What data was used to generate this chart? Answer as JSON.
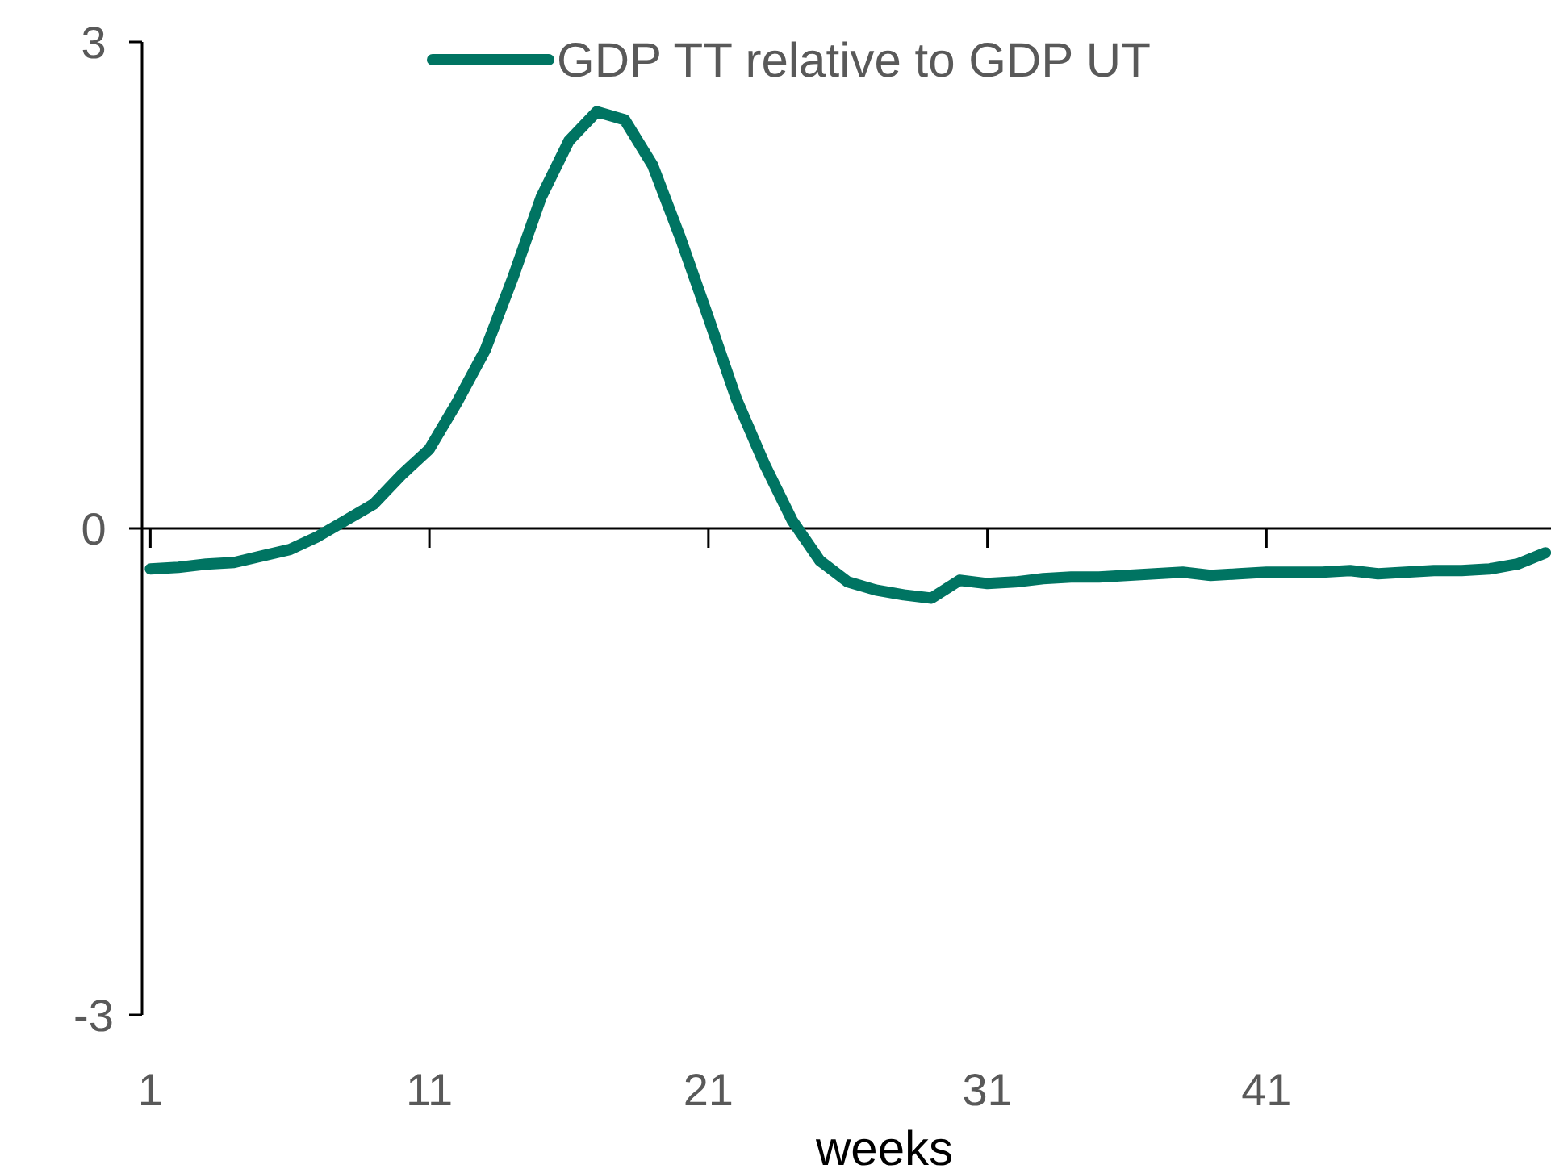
{
  "chart_data": {
    "type": "line",
    "xlabel": "weeks",
    "x": [
      1,
      2,
      3,
      4,
      5,
      6,
      7,
      8,
      9,
      10,
      11,
      12,
      13,
      14,
      15,
      16,
      17,
      18,
      19,
      20,
      21,
      22,
      23,
      24,
      25,
      26,
      27,
      28,
      29,
      30,
      31,
      32,
      33,
      34,
      35,
      36,
      37,
      38,
      39,
      40,
      41,
      42,
      43,
      44,
      45,
      46,
      47,
      48,
      49,
      50,
      51
    ],
    "series": [
      {
        "name": "GDP TT relative to GDP UT",
        "color": "#007462",
        "values": [
          -0.25,
          -0.24,
          -0.22,
          -0.21,
          -0.17,
          -0.13,
          -0.05,
          0.05,
          0.15,
          0.33,
          0.49,
          0.78,
          1.1,
          1.55,
          2.04,
          2.39,
          2.57,
          2.52,
          2.24,
          1.79,
          1.3,
          0.8,
          0.4,
          0.05,
          -0.2,
          -0.33,
          -0.38,
          -0.41,
          -0.43,
          -0.32,
          -0.34,
          -0.33,
          -0.31,
          -0.3,
          -0.3,
          -0.29,
          -0.28,
          -0.27,
          -0.29,
          -0.28,
          -0.27,
          -0.27,
          -0.27,
          -0.26,
          -0.28,
          -0.27,
          -0.26,
          -0.26,
          -0.25,
          -0.22,
          -0.15
        ]
      }
    ],
    "xlim": [
      0.7,
      51.2
    ],
    "xticks": [
      1,
      11,
      21,
      31,
      41
    ],
    "ylim": [
      -3,
      3
    ],
    "yticks": [
      -3,
      0,
      3
    ],
    "legend": "top",
    "marker": "none",
    "line_style": "solid"
  }
}
